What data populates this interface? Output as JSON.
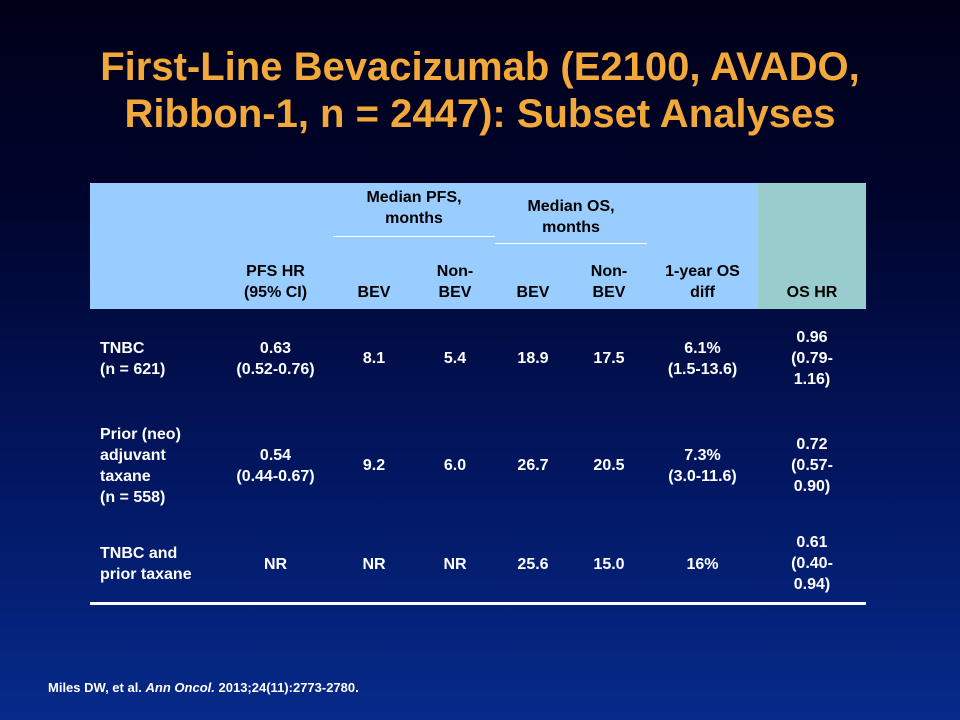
{
  "slide": {
    "title_line1": "First-Line Bevacizumab (E2100, AVADO,",
    "title_line2": "Ribbon-1, n = 2447): Subset Analyses"
  },
  "table": {
    "group_headers": {
      "median_pfs_l1": "Median PFS,",
      "median_pfs_l2": "months",
      "median_os_l1": "Median OS,",
      "median_os_l2": "months"
    },
    "columns": {
      "pfs_hr_l1": "PFS HR",
      "pfs_hr_l2": "(95% CI)",
      "pfs_bev": "BEV",
      "pfs_nonbev_l1": "Non-",
      "pfs_nonbev_l2": "BEV",
      "os_bev": "BEV",
      "os_nonbev_l1": "Non-",
      "os_nonbev_l2": "BEV",
      "os_diff_l1": "1-year OS",
      "os_diff_l2": "diff",
      "os_hr": "OS HR"
    },
    "rows": [
      {
        "label": [
          "TNBC",
          "(n = 621)"
        ],
        "pfs_hr": [
          "0.63",
          "(0.52-0.76)"
        ],
        "pfs_bev": "8.1",
        "pfs_nonbev": "5.4",
        "os_bev": "18.9",
        "os_nonbev": "17.5",
        "os_diff": [
          "6.1%",
          "(1.5-13.6)"
        ],
        "os_hr": [
          "0.96",
          "(0.79-",
          "1.16)"
        ]
      },
      {
        "label": [
          "Prior (neo)",
          "adjuvant",
          "taxane",
          "(n = 558)"
        ],
        "pfs_hr": [
          "0.54",
          "(0.44-0.67)"
        ],
        "pfs_bev": "9.2",
        "pfs_nonbev": "6.0",
        "os_bev": "26.7",
        "os_nonbev": "20.5",
        "os_diff": [
          "7.3%",
          "(3.0-11.6)"
        ],
        "os_hr": [
          "0.72",
          "(0.57-",
          "0.90)"
        ]
      },
      {
        "label": [
          "TNBC and",
          "prior taxane"
        ],
        "pfs_hr": [
          "NR"
        ],
        "pfs_bev": "NR",
        "pfs_nonbev": "NR",
        "os_bev": "25.6",
        "os_nonbev": "15.0",
        "os_diff": [
          "16%"
        ],
        "os_hr": [
          "0.61",
          "(0.40-",
          "0.94)"
        ]
      }
    ]
  },
  "citation": {
    "authors": "Miles DW, et al.",
    "journal": "Ann Oncol.",
    "ref": "2013;24(11):2773-2780."
  },
  "colors": {
    "title": "#f2a93a",
    "header_bg": "#99ccff",
    "os_hr_header_bg": "#99cccc",
    "body_text": "#ffffff"
  }
}
